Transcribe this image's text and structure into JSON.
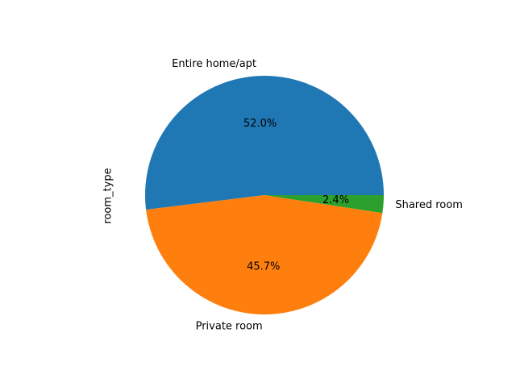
{
  "chart_data": {
    "type": "pie",
    "title": "",
    "ylabel": "room_type",
    "categories": [
      "Entire home/apt",
      "Private room",
      "Shared room"
    ],
    "values": [
      52.0,
      45.7,
      2.4
    ],
    "percent_labels": [
      "52.0%",
      "45.7%",
      "2.4%"
    ],
    "colors": [
      "#1f77b4",
      "#ff7f0e",
      "#2ca02c"
    ],
    "start_angle_deg": 0,
    "direction": "counterclockwise",
    "legend": "none"
  }
}
